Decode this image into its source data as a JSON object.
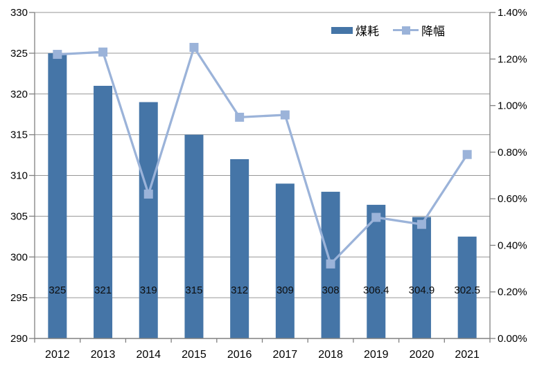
{
  "chart_data": {
    "type": "combo-bar-line",
    "title": "",
    "categories": [
      "2012",
      "2013",
      "2014",
      "2015",
      "2016",
      "2017",
      "2018",
      "2019",
      "2020",
      "2021"
    ],
    "series": [
      {
        "name": "煤耗",
        "type": "bar",
        "axis": "left",
        "values": [
          325,
          321,
          319,
          315,
          312,
          309,
          308,
          306.4,
          304.9,
          302.5
        ],
        "data_labels": [
          "325",
          "321",
          "319",
          "315",
          "312",
          "309",
          "308",
          "306.4",
          "304.9",
          "302.5"
        ],
        "color": "#4575A7"
      },
      {
        "name": "降幅",
        "type": "line",
        "axis": "right",
        "values": [
          0.0122,
          0.0123,
          0.0062,
          0.0125,
          0.0095,
          0.0096,
          0.0032,
          0.0052,
          0.0049,
          0.0079
        ],
        "values_display": [
          "1.22%",
          "1.23%",
          "0.62%",
          "1.25%",
          "0.95%",
          "0.96%",
          "0.32%",
          "0.52%",
          "0.49%",
          "0.79%"
        ],
        "color": "#9BB3D9",
        "marker": "square"
      }
    ],
    "left_axis": {
      "min": 290,
      "max": 330,
      "step": 5,
      "tick_labels": [
        "330",
        "325",
        "320",
        "315",
        "310",
        "305",
        "300",
        "295",
        "290"
      ]
    },
    "right_axis": {
      "min": 0,
      "max": 0.014,
      "step": 0.002,
      "tick_labels": [
        "1.40%",
        "1.20%",
        "1.00%",
        "0.80%",
        "0.60%",
        "0.40%",
        "0.20%",
        "0.00%"
      ]
    },
    "legend": {
      "position": "top",
      "items": [
        {
          "label": "煤耗",
          "swatch": "bar"
        },
        {
          "label": "降幅",
          "swatch": "line-marker"
        }
      ]
    },
    "grid": true,
    "colors": {
      "grid": "#969696",
      "axis": "#808080",
      "text": "#000000",
      "data_label": "#0d0d0d"
    }
  }
}
